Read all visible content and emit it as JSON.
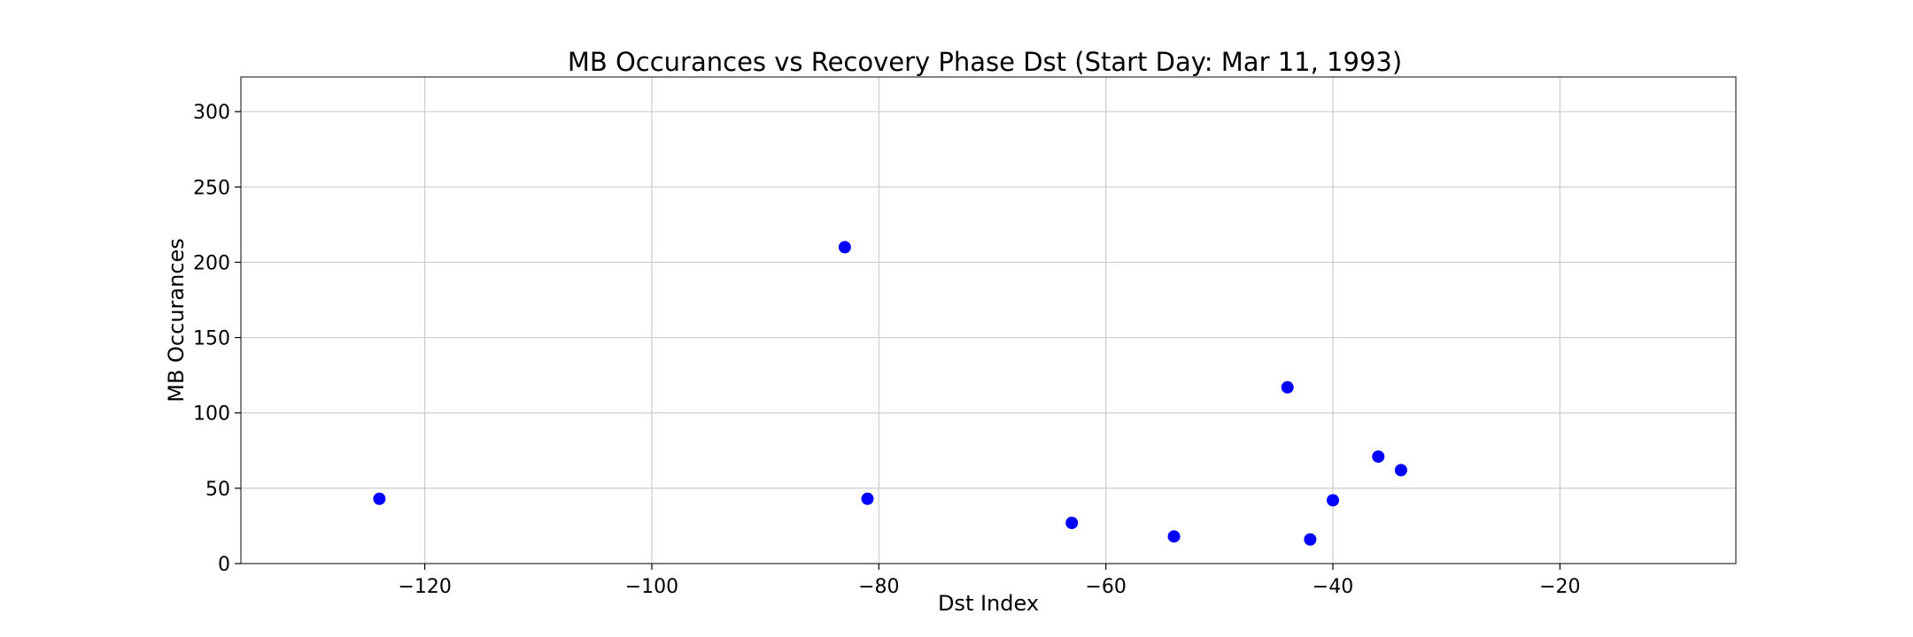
{
  "chart_data": {
    "type": "scatter",
    "title": "MB Occurances vs Recovery Phase Dst (Start Day: Mar 11, 1993)",
    "xlabel": "Dst Index",
    "ylabel": "MB Occurances",
    "xlim": [
      -136.2,
      -4.5
    ],
    "ylim": [
      0,
      323
    ],
    "xticks": [
      -120,
      -100,
      -80,
      -60,
      -40,
      -20
    ],
    "xtick_labels": [
      "−120",
      "−100",
      "−80",
      "−60",
      "−40",
      "−20"
    ],
    "yticks": [
      0,
      50,
      100,
      150,
      200,
      250,
      300
    ],
    "ytick_labels": [
      "0",
      "50",
      "100",
      "150",
      "200",
      "250",
      "300"
    ],
    "grid": true,
    "marker_color": "#0000ff",
    "points": [
      {
        "x": -124,
        "y": 43
      },
      {
        "x": -83,
        "y": 210
      },
      {
        "x": -81,
        "y": 43
      },
      {
        "x": -63,
        "y": 27
      },
      {
        "x": -54,
        "y": 18
      },
      {
        "x": -44,
        "y": 117
      },
      {
        "x": -42,
        "y": 16
      },
      {
        "x": -40,
        "y": 42
      },
      {
        "x": -36,
        "y": 71
      },
      {
        "x": -34,
        "y": 62
      }
    ]
  }
}
